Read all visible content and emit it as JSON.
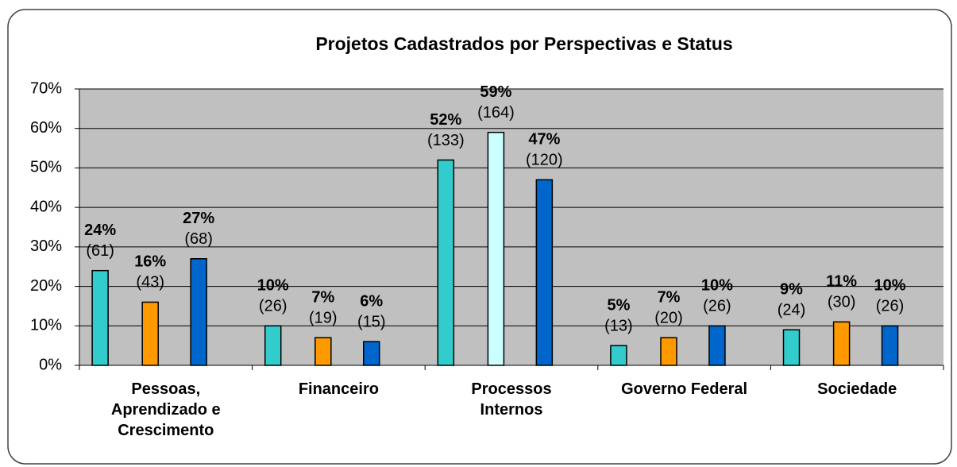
{
  "chart_data": {
    "type": "bar",
    "title": "Projetos Cadastrados por Perspectivas e Status",
    "categories": [
      "Pessoas,\nAprendizado e\nCrescimento",
      "Financeiro",
      "Processos\nInternos",
      "Governo Federal",
      "Sociedade"
    ],
    "series": [
      {
        "color": "#33cccc",
        "values": [
          24,
          10,
          52,
          5,
          9
        ],
        "value_labels": [
          "24%",
          "10%",
          "52%",
          "5%",
          "9%"
        ],
        "count_labels": [
          "(61)",
          "(26)",
          "(133)",
          "(13)",
          "(24)"
        ]
      },
      {
        "color": "#ff9900",
        "colors": [
          "#ff9900",
          "#ff9900",
          "#ccffff",
          "#ff9900",
          "#ff9900"
        ],
        "values": [
          16,
          7,
          59,
          7,
          11
        ],
        "value_labels": [
          "16%",
          "7%",
          "59%",
          "7%",
          "11%"
        ],
        "count_labels": [
          "(43)",
          "(19)",
          "(164)",
          "(20)",
          "(30)"
        ]
      },
      {
        "color": "#0066cc",
        "values": [
          27,
          6,
          47,
          10,
          10
        ],
        "value_labels": [
          "27%",
          "6%",
          "47%",
          "10%",
          "10%"
        ],
        "count_labels": [
          "(68)",
          "(15)",
          "(120)",
          "(26)",
          "(26)"
        ]
      }
    ],
    "ylim": [
      0,
      70
    ],
    "yticks": [
      {
        "value": 0,
        "label": "0%"
      },
      {
        "value": 10,
        "label": "10%"
      },
      {
        "value": 20,
        "label": "20%"
      },
      {
        "value": 30,
        "label": "30%"
      },
      {
        "value": 40,
        "label": "40%"
      },
      {
        "value": 50,
        "label": "50%"
      },
      {
        "value": 60,
        "label": "60%"
      },
      {
        "value": 70,
        "label": "70%"
      }
    ],
    "grid": true
  }
}
